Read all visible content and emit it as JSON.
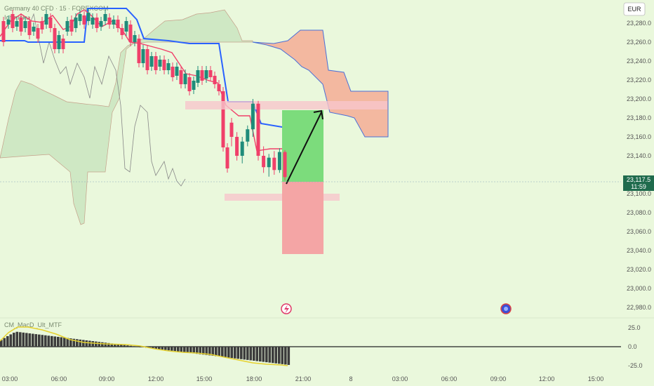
{
  "symbol": {
    "title": "Germany 40 CFD",
    "interval": "15",
    "source": "FOREXCOM",
    "sub_indicator": "Ichimoku"
  },
  "oscillator": {
    "name": "CM_MacD_Ult_MTF"
  },
  "currency": "EUR",
  "price_tag": {
    "price": "23,117.5",
    "countdown": "11:59",
    "value": 23117.5
  },
  "price_axis": {
    "ticks": [
      "23,280.0",
      "23,260.0",
      "23,240.0",
      "23,220.0",
      "23,200.0",
      "23,180.0",
      "23,160.0",
      "23,140.0",
      "23,100.0",
      "23,080.0",
      "23,060.0",
      "23,040.0",
      "23,020.0",
      "23,000.0",
      "22,980.0"
    ],
    "values": [
      23280,
      23260,
      23240,
      23220,
      23200,
      23180,
      23160,
      23140,
      23100,
      23080,
      23060,
      23040,
      23020,
      23000,
      22980
    ]
  },
  "osc_axis": {
    "ticks": [
      "25.0",
      "0.0",
      "-25.0"
    ],
    "values": [
      25,
      0,
      -25
    ]
  },
  "time_axis": [
    "03:00",
    "06:00",
    "09:00",
    "12:00",
    "15:00",
    "18:00",
    "21:00",
    "8",
    "03:00",
    "06:00",
    "09:00",
    "12:00",
    "15:00"
  ],
  "colors": {
    "up": "#1f8c7a",
    "down": "#f0406a",
    "kijun": "#2962ff",
    "tenkan": "#f0406a",
    "cloud_up": "#cfe8c4",
    "cloud_down": "#f3b8a0",
    "target": "#7cdc7c",
    "stop": "#f4a5a5",
    "zone": "#f7c5cc",
    "price_tag": "#1f6b4d",
    "macd_line": "#e6d22e",
    "hist": "#3c3c3c"
  },
  "icons": [
    "lightning-icon",
    "flag-icon"
  ],
  "chart_data": {
    "type": "candlestick",
    "price_range": [
      22975,
      23295
    ],
    "candles_tail": [
      {
        "o": 23175,
        "h": 23180,
        "l": 23150,
        "c": 23160
      },
      {
        "o": 23160,
        "h": 23165,
        "l": 23135,
        "c": 23140
      },
      {
        "o": 23140,
        "h": 23160,
        "l": 23132,
        "c": 23155
      },
      {
        "o": 23155,
        "h": 23172,
        "l": 23150,
        "c": 23168
      },
      {
        "o": 23168,
        "h": 23200,
        "l": 23160,
        "c": 23195
      },
      {
        "o": 23195,
        "h": 23198,
        "l": 23135,
        "c": 23140
      },
      {
        "o": 23140,
        "h": 23150,
        "l": 23122,
        "c": 23128
      },
      {
        "o": 23128,
        "h": 23142,
        "l": 23118,
        "c": 23138
      },
      {
        "o": 23138,
        "h": 23145,
        "l": 23120,
        "c": 23125
      },
      {
        "o": 23125,
        "h": 23148,
        "l": 23122,
        "c": 23144
      },
      {
        "o": 23144,
        "h": 23146,
        "l": 23114,
        "c": 23117.5
      }
    ],
    "trade": {
      "entry": 23117.5,
      "target": 23190,
      "stop": 23040
    },
    "zones": [
      {
        "top": 23202,
        "bottom": 23194
      },
      {
        "top": 23104,
        "bottom": 23097
      }
    ]
  }
}
